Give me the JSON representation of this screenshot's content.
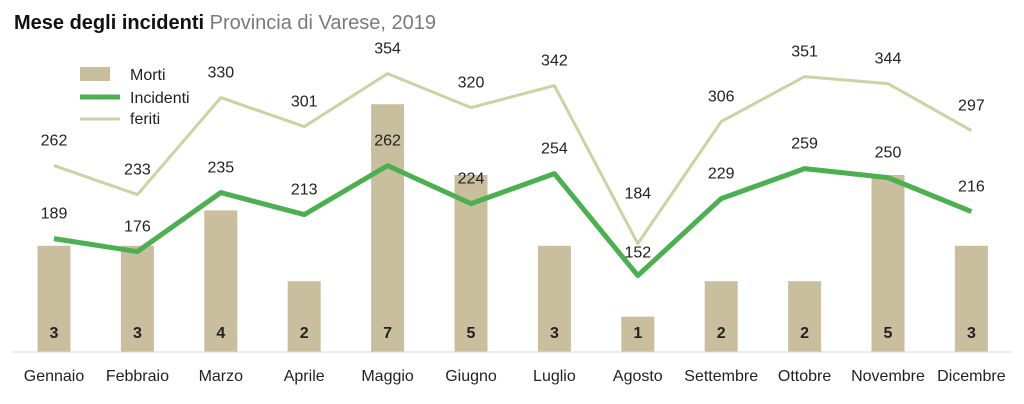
{
  "title": {
    "main": "Mese degli incidenti",
    "sub": "Provincia di Varese, 2019"
  },
  "chart_data": {
    "type": "bar+line",
    "categories": [
      "Gennaio",
      "Febbraio",
      "Marzo",
      "Aprile",
      "Maggio",
      "Giugno",
      "Luglio",
      "Agosto",
      "Settembre",
      "Ottobre",
      "Novembre",
      "Dicembre"
    ],
    "series": [
      {
        "name": "Morti",
        "type": "bar",
        "color": "#c9bf9e",
        "values": [
          3,
          3,
          4,
          2,
          7,
          5,
          3,
          1,
          2,
          2,
          5,
          3
        ]
      },
      {
        "name": "Incidenti",
        "type": "line",
        "color": "#4caf50",
        "values": [
          189,
          176,
          235,
          213,
          262,
          224,
          254,
          152,
          229,
          259,
          250,
          216
        ]
      },
      {
        "name": "feriti",
        "type": "line",
        "color": "#c8d4a3",
        "values": [
          262,
          233,
          330,
          301,
          354,
          320,
          342,
          184,
          306,
          351,
          344,
          297
        ]
      }
    ],
    "legend_position": "top-left",
    "grid": false
  }
}
